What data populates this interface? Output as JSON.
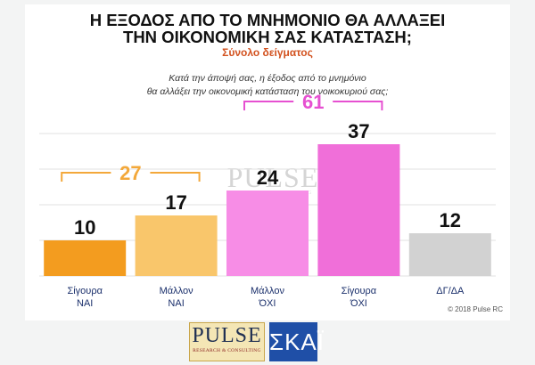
{
  "header": {
    "title_line1": "Η ΕΞΟΔΟΣ ΑΠΟ ΤΟ ΜΝΗΜΟΝΙΟ ΘΑ ΑΛΛΑΞΕΙ",
    "title_line2": "ΤΗΝ ΟΙΚΟΝΟΜΙΚΗ ΣΑΣ ΚΑΤΑΣΤΑΣΗ;",
    "subtitle": "Σύνολο δείγματος",
    "question_line1": "Κατά την άποψή σας, η έξοδος από το μνημόνιο",
    "question_line2": "θα αλλάξει την οικονομική κατάσταση του νοικοκυριού σας;"
  },
  "watermark": {
    "brand": "PULSE",
    "tagline": "RESEARCH & CONSULTING"
  },
  "footer": {
    "copyright": "© 2018 Pulse RC",
    "logo_pulse_text": "PULSE",
    "logo_pulse_tagline": "RESEARCH & CONSULTING",
    "logo_skai_text": "ΣΚΑΪ"
  },
  "chart_data": {
    "type": "bar",
    "categories": [
      [
        "Σίγουρα",
        "ΝΑΙ"
      ],
      [
        "Μάλλον",
        "ΝΑΙ"
      ],
      [
        "Μάλλον",
        "ΌΧΙ"
      ],
      [
        "Σίγουρα",
        "ΌΧΙ"
      ],
      [
        "ΔΓ/ΔΑ"
      ]
    ],
    "values": [
      10,
      17,
      24,
      37,
      12
    ],
    "colors": [
      "#f39c1f",
      "#f9c66b",
      "#f78de6",
      "#f06fd9",
      "#d2d2d2"
    ],
    "ylim": [
      0,
      40
    ],
    "grid": true,
    "groups": [
      {
        "label": "27",
        "from": 0,
        "to": 1,
        "color": "#f3a83a"
      },
      {
        "label": "61",
        "from": 2,
        "to": 3,
        "color": "#e650d1"
      }
    ]
  }
}
